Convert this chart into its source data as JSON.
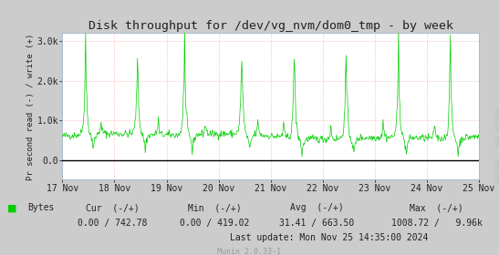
{
  "title": "Disk throughput for /dev/vg_nvm/dom0_tmp - by week",
  "ylabel": "Pr second read (-) / write (+)",
  "bg_color": "#CCCCCC",
  "plot_bg_color": "#FFFFFF",
  "grid_color": "#FF9999",
  "line_color": "#00CC00",
  "zero_line_color": "#000000",
  "axis_color": "#AAAAAA",
  "x_tick_labels": [
    "17 Nov",
    "18 Nov",
    "19 Nov",
    "20 Nov",
    "21 Nov",
    "22 Nov",
    "23 Nov",
    "24 Nov",
    "25 Nov"
  ],
  "y_tick_labels": [
    "0.0",
    "1.0k",
    "2.0k",
    "3.0k"
  ],
  "ylim_low": -500,
  "ylim_high": 3200,
  "legend_label": "Bytes",
  "legend_color": "#00CC00",
  "cur_neg": "0.00",
  "cur_pos": "742.78",
  "min_neg": "0.00",
  "min_pos": "419.02",
  "avg_neg": "31.41",
  "avg_pos": "663.50",
  "max_neg": "1008.72",
  "max_pos": "9.96k",
  "last_update": "Last update: Mon Nov 25 14:35:00 2024",
  "munin_version": "Munin 2.0.33-1",
  "right_label": "RRDTOOL / TOBI OETIKER",
  "n_points": 700
}
